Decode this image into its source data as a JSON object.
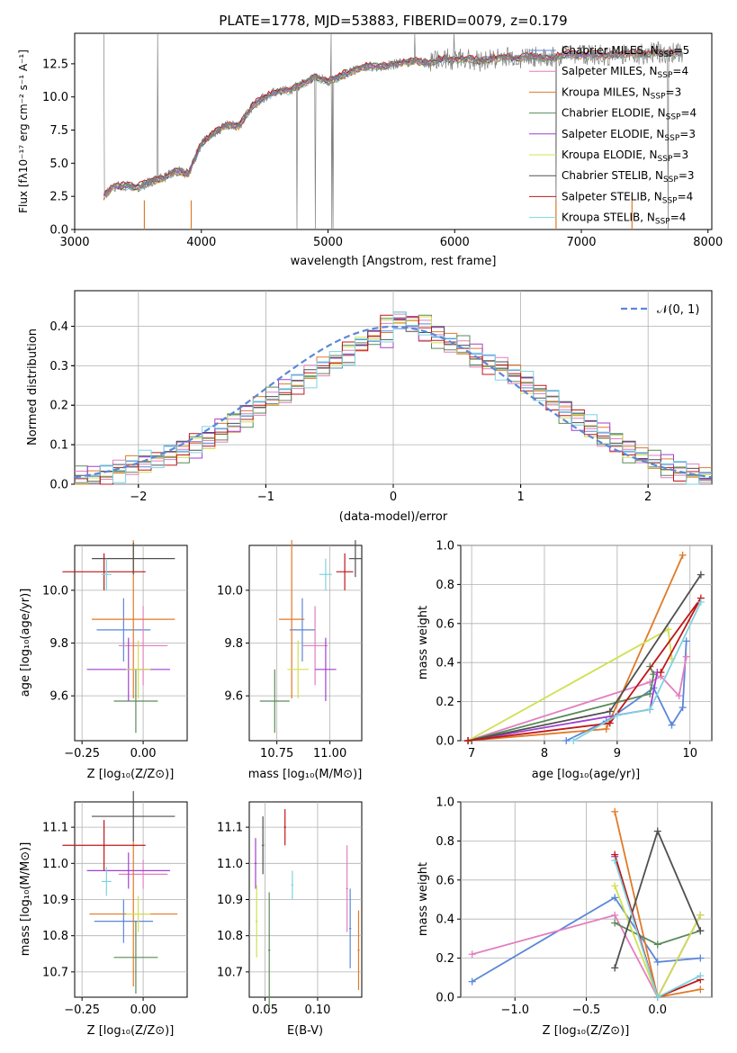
{
  "figure_title": "PLATE=1778, MJD=53883, FIBERID=0079, z=0.179",
  "panels": {
    "spectrum": {
      "xlabel": "wavelength [Angstrom, rest frame]",
      "ylabel": "Flux [fλ10⁻¹⁷ erg cm⁻² s⁻¹ A⁻¹]",
      "xticks": [
        "3000",
        "4000",
        "5000",
        "6000",
        "7000",
        "8000"
      ],
      "yticks": [
        "0.0",
        "2.5",
        "5.0",
        "7.5",
        "10.0",
        "12.5"
      ],
      "legend": [
        {
          "label": "Chabrier MILES, N",
          "sub": "SSP",
          "eq": "=5",
          "color": "#5b87d8"
        },
        {
          "label": "Salpeter MILES, N",
          "sub": "SSP",
          "eq": "=4",
          "color": "#e37fbf"
        },
        {
          "label": "Kroupa MILES, N",
          "sub": "SSP",
          "eq": "=3",
          "color": "#e07a28"
        },
        {
          "label": "Chabrier ELODIE, N",
          "sub": "SSP",
          "eq": "=4",
          "color": "#5a8a5a"
        },
        {
          "label": "Salpeter ELODIE, N",
          "sub": "SSP",
          "eq": "=3",
          "color": "#a23fcf"
        },
        {
          "label": "Kroupa ELODIE, N",
          "sub": "SSP",
          "eq": "=3",
          "color": "#d0e050"
        },
        {
          "label": "Chabrier STELIB, N",
          "sub": "SSP",
          "eq": "=3",
          "color": "#505050"
        },
        {
          "label": "Salpeter STELIB, N",
          "sub": "SSP",
          "eq": "=4",
          "color": "#c01818"
        },
        {
          "label": "Kroupa STELIB, N",
          "sub": "SSP",
          "eq": "=4",
          "color": "#7fd3df"
        }
      ]
    },
    "residuals": {
      "xlabel": "(data-model)/error",
      "ylabel": "Normed distribution",
      "xticks": [
        "−2",
        "−1",
        "0",
        "1",
        "2"
      ],
      "yticks": [
        "0.0",
        "0.1",
        "0.2",
        "0.3",
        "0.4"
      ],
      "legend_label": "𝒩(0, 1)"
    },
    "age_vs_Z": {
      "xlabel": "Z [log₁₀(Z/Z⊙)]",
      "ylabel": "age  [log₁₀(age/yr)]",
      "xticks": [
        "−0.25",
        "0.00"
      ],
      "yticks": [
        "9.6",
        "9.8",
        "10.0"
      ]
    },
    "age_vs_mass": {
      "xlabel": "mass [log₁₀(M/M⊙)]",
      "ylabel": "",
      "xticks": [
        "10.75",
        "11.00"
      ],
      "yticks": [
        "9.6",
        "9.8",
        "10.0"
      ]
    },
    "mw_vs_age": {
      "xlabel": "age  [log₁₀(age/yr)]",
      "ylabel": "mass weight",
      "xticks": [
        "7",
        "8",
        "9",
        "10"
      ],
      "yticks": [
        "0.0",
        "0.2",
        "0.4",
        "0.6",
        "0.8",
        "1.0"
      ]
    },
    "mass_vs_Z": {
      "xlabel": "Z [log₁₀(Z/Z⊙)]",
      "ylabel": "mass [log₁₀(M/M⊙)]",
      "xticks": [
        "−0.25",
        "0.00"
      ],
      "yticks": [
        "10.7",
        "10.8",
        "10.9",
        "11.0",
        "11.1"
      ]
    },
    "mass_vs_ebv": {
      "xlabel": "E(B-V)",
      "ylabel": "",
      "xticks": [
        "0.05",
        "0.10"
      ],
      "yticks": [
        "10.7",
        "10.8",
        "10.9",
        "11.0",
        "11.1"
      ]
    },
    "mw_vs_Z": {
      "xlabel": "Z [log₁₀(Z/Z⊙)]",
      "ylabel": "mass weight",
      "xticks": [
        "−1.0",
        "−0.5",
        "0.0"
      ],
      "yticks": [
        "0.0",
        "0.2",
        "0.4",
        "0.6",
        "0.8",
        "1.0"
      ]
    }
  },
  "chart_data": [
    {
      "type": "line",
      "title": "PLATE=1778, MJD=53883, FIBERID=0079, z=0.179",
      "xlabel": "wavelength [Angstrom, rest frame]",
      "ylabel": "Flux [fλ10⁻¹⁷ erg cm⁻² s⁻¹ A⁻¹]",
      "xlim": [
        3000,
        8030
      ],
      "ylim": [
        0,
        14.8
      ],
      "x": [
        3230,
        3300,
        3400,
        3500,
        3600,
        3700,
        3800,
        3900,
        4000,
        4100,
        4200,
        4300,
        4400,
        4500,
        4600,
        4700,
        4800,
        4900,
        5000,
        5100,
        5200,
        5300,
        5400,
        5500,
        5600,
        5700,
        5800,
        5900,
        6000,
        6100,
        6200,
        6300,
        6400,
        6500,
        6600,
        6700,
        6800,
        6900,
        7000,
        7100,
        7200,
        7300,
        7400,
        7500,
        7600,
        7700,
        7800
      ],
      "series": [
        {
          "name": "data",
          "values": [
            2.5,
            3.2,
            3.3,
            3.2,
            3.6,
            3.9,
            4.4,
            4.2,
            6.5,
            7.3,
            7.9,
            7.8,
            9.3,
            10.0,
            10.4,
            10.5,
            11.0,
            11.5,
            11.2,
            11.6,
            12.0,
            12.3,
            12.3,
            12.4,
            12.6,
            12.7,
            12.5,
            12.9,
            12.8,
            12.9,
            12.7,
            12.9,
            13.0,
            12.9,
            13.1,
            12.9,
            13.0,
            13.3,
            13.1,
            13.2,
            13.1,
            13.2,
            13.3,
            13.2,
            13.4,
            13.3,
            13.4
          ]
        }
      ]
    },
    {
      "type": "bar",
      "title": "",
      "xlabel": "(data-model)/error",
      "ylabel": "Normed distribution",
      "xlim": [
        -2.5,
        2.5
      ],
      "ylim": [
        0,
        0.49
      ],
      "bin_start": -2.5,
      "bin_width": 0.1,
      "series": [
        {
          "name": "",
          "values": [
            0.02,
            0.02,
            0.03,
            0.04,
            0.05,
            0.06,
            0.07,
            0.08,
            0.09,
            0.1,
            0.12,
            0.14,
            0.16,
            0.18,
            0.2,
            0.22,
            0.24,
            0.26,
            0.28,
            0.3,
            0.31,
            0.33,
            0.35,
            0.37,
            0.38,
            0.41,
            0.4,
            0.39,
            0.38,
            0.36,
            0.35,
            0.33,
            0.31,
            0.3,
            0.28,
            0.26,
            0.24,
            0.22,
            0.19,
            0.17,
            0.15,
            0.13,
            0.11,
            0.09,
            0.07,
            0.06,
            0.05,
            0.04,
            0.03,
            0.02
          ]
        },
        {
          "name": "",
          "values": [
            0.01,
            0.02,
            0.02,
            0.03,
            0.04,
            0.05,
            0.06,
            0.07,
            0.08,
            0.1,
            0.11,
            0.13,
            0.15,
            0.17,
            0.19,
            0.21,
            0.23,
            0.25,
            0.27,
            0.29,
            0.32,
            0.34,
            0.36,
            0.38,
            0.4,
            0.43,
            0.42,
            0.4,
            0.37,
            0.35,
            0.34,
            0.32,
            0.3,
            0.29,
            0.27,
            0.25,
            0.23,
            0.21,
            0.18,
            0.16,
            0.14,
            0.12,
            0.1,
            0.08,
            0.07,
            0.05,
            0.04,
            0.03,
            0.02,
            0.02
          ]
        }
      ],
      "reference_curve": {
        "name": "𝒩(0, 1)",
        "mu": 0,
        "sigma": 1
      }
    },
    {
      "type": "scatter",
      "title": "",
      "xlabel": "age  [log₁₀(age/yr)]",
      "ylabel": "mass weight",
      "xlim": [
        6.85,
        10.3
      ],
      "ylim": [
        0,
        1.0
      ],
      "series": [
        {
          "name": "",
          "x": [
            8.3,
            8.85,
            9.5,
            9.75,
            9.9,
            9.95
          ],
          "y": [
            0.0,
            0.1,
            0.27,
            0.08,
            0.17,
            0.51
          ]
        },
        {
          "name": "",
          "x": [
            6.95,
            9.45,
            9.6,
            9.85,
            9.95
          ],
          "y": [
            0.0,
            0.3,
            0.33,
            0.23,
            0.43
          ]
        },
        {
          "name": "",
          "x": [
            6.95,
            8.85,
            9.9
          ],
          "y": [
            0.0,
            0.06,
            0.95
          ]
        },
        {
          "name": "",
          "x": [
            6.95,
            9.45,
            9.5,
            9.45
          ],
          "y": [
            0.0,
            0.24,
            0.34,
            0.38
          ]
        },
        {
          "name": "",
          "x": [
            6.95,
            9.45,
            9.55
          ],
          "y": [
            0.0,
            0.16,
            0.35
          ]
        },
        {
          "name": "",
          "x": [
            6.95,
            9.7,
            9.75
          ],
          "y": [
            0.0,
            0.57,
            0.42
          ]
        },
        {
          "name": "",
          "x": [
            6.95,
            8.9,
            10.15
          ],
          "y": [
            0.0,
            0.15,
            0.85
          ]
        },
        {
          "name": "",
          "x": [
            6.95,
            8.9,
            10.15,
            9.6
          ],
          "y": [
            0.0,
            0.09,
            0.73,
            0.35
          ]
        },
        {
          "name": "",
          "x": [
            8.4,
            9.0,
            9.45,
            10.15
          ],
          "y": [
            0.0,
            0.13,
            0.16,
            0.71
          ]
        }
      ]
    },
    {
      "type": "scatter",
      "title": "",
      "xlabel": "Z [log₁₀(Z/Z⊙)]",
      "ylabel": "mass weight",
      "xlim": [
        -1.38,
        0.38
      ],
      "ylim": [
        0,
        1.0
      ],
      "series": [
        {
          "name": "",
          "x": [
            -1.3,
            -0.3,
            0.0,
            0.3
          ],
          "y": [
            0.08,
            0.51,
            0.18,
            0.2
          ]
        },
        {
          "name": "",
          "x": [
            -1.3,
            -0.3,
            0.0
          ],
          "y": [
            0.22,
            0.42,
            0.0
          ]
        },
        {
          "name": "",
          "x": [
            -0.3,
            0.0,
            0.3
          ],
          "y": [
            0.95,
            0.0,
            0.04
          ]
        },
        {
          "name": "",
          "x": [
            -0.3,
            0.0,
            0.3
          ],
          "y": [
            0.38,
            0.27,
            0.34
          ]
        },
        {
          "name": "",
          "x": [
            -0.3,
            0.0,
            0.3
          ],
          "y": [
            0.72,
            0.0,
            0.42
          ]
        },
        {
          "name": "",
          "x": [
            -0.3,
            0.0,
            0.3
          ],
          "y": [
            0.57,
            0.0,
            0.42
          ]
        },
        {
          "name": "",
          "x": [
            -0.3,
            0.0,
            0.3
          ],
          "y": [
            0.15,
            0.85,
            0.34
          ]
        },
        {
          "name": "",
          "x": [
            -0.3,
            0.0,
            0.3
          ],
          "y": [
            0.73,
            0.0,
            0.09
          ]
        },
        {
          "name": "",
          "x": [
            -0.3,
            0.0,
            0.3
          ],
          "y": [
            0.7,
            0.0,
            0.11
          ]
        }
      ]
    }
  ]
}
